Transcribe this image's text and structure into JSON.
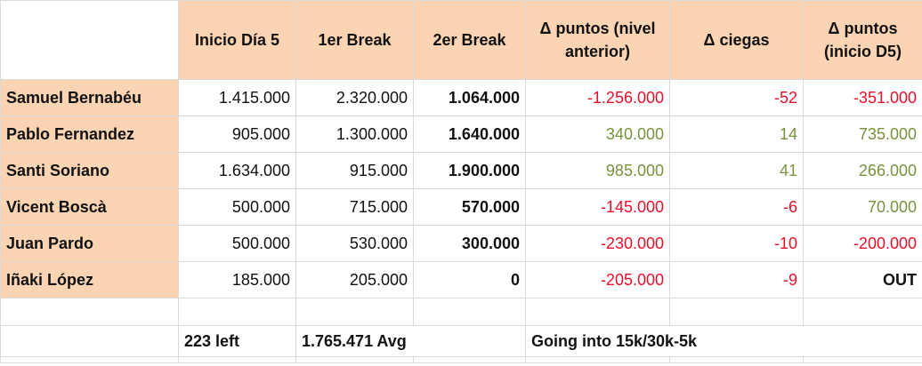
{
  "header": {
    "col_start": "Inicio Día 5",
    "col_break1": "1er Break",
    "col_break2": "2er Break",
    "col_delta_points_prev": "Δ puntos (nivel anterior)",
    "col_delta_blinds": "Δ ciegas",
    "col_delta_points_start": "Δ puntos (inicio D5)"
  },
  "rows": [
    {
      "name": "Samuel Bernabéu",
      "start": "1.415.000",
      "break1": "2.320.000",
      "break2": "1.064.000",
      "delta_prev": "-1.256.000",
      "delta_blinds": "-52",
      "delta_start": "-351.000",
      "trend": "red"
    },
    {
      "name": "Pablo Fernandez",
      "start": "905.000",
      "break1": "1.300.000",
      "break2": "1.640.000",
      "delta_prev": "340.000",
      "delta_blinds": "14",
      "delta_start": "735.000",
      "trend": "green"
    },
    {
      "name": "Santi Soriano",
      "start": "1.634.000",
      "break1": "915.000",
      "break2": "1.900.000",
      "delta_prev": "985.000",
      "delta_blinds": "41",
      "delta_start": "266.000",
      "trend": "green"
    },
    {
      "name": "Vicent Boscà",
      "start": "500.000",
      "break1": "715.000",
      "break2": "570.000",
      "delta_prev": "-145.000",
      "delta_blinds": "-6",
      "delta_start": "70.000",
      "trend": "red",
      "start_trend": "green"
    },
    {
      "name": "Juan Pardo",
      "start": "500.000",
      "break1": "530.000",
      "break2": "300.000",
      "delta_prev": "-230.000",
      "delta_blinds": "-10",
      "delta_start": "-200.000",
      "trend": "red"
    },
    {
      "name": "Iñaki López",
      "start": "185.000",
      "break1": "205.000",
      "break2": "0",
      "delta_prev": "-205.000",
      "delta_blinds": "-9",
      "delta_start": "OUT",
      "trend": "red",
      "start_trend": "black"
    }
  ],
  "footer": {
    "left_count": "223 left",
    "average": "1.765.471 Avg",
    "level": "Going into 15k/30k-5k"
  },
  "colors": {
    "header_bg": "#fbd4b4",
    "negative": "#e8102a",
    "positive": "#77933c",
    "grid": "#d9d9d9"
  }
}
